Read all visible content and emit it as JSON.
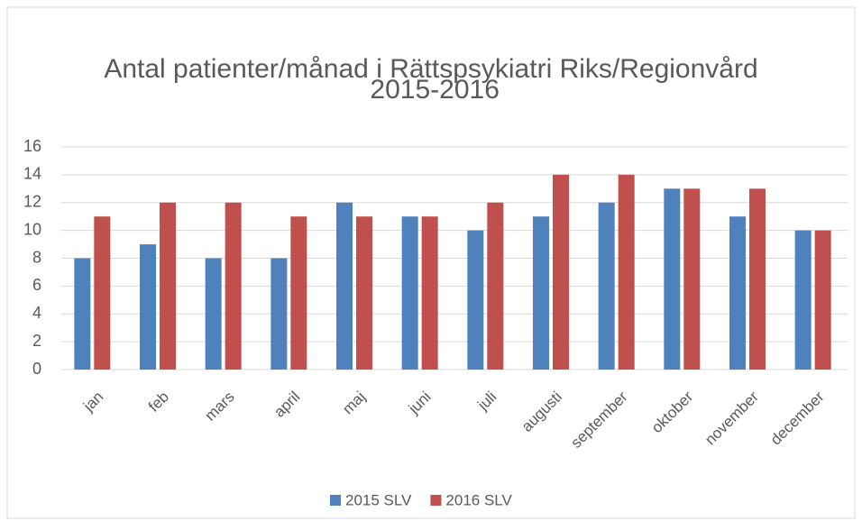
{
  "chart_data": {
    "type": "bar",
    "title": "Antal patienter/månad i Rättspsykiatri Riks/Regionvård 2015-2016",
    "categories": [
      "jan",
      "feb",
      "mars",
      "april",
      "maj",
      "juni",
      "juli",
      "augusti",
      "september",
      "oktober",
      "november",
      "december"
    ],
    "series": [
      {
        "name": "2015 SLV",
        "color": "#4f81bd",
        "values": [
          8,
          9,
          8,
          8,
          12,
          11,
          10,
          11,
          12,
          13,
          11,
          10
        ]
      },
      {
        "name": "2016 SLV",
        "color": "#c0504d",
        "values": [
          11,
          12,
          12,
          11,
          11,
          11,
          12,
          14,
          14,
          13,
          13,
          10
        ]
      }
    ],
    "ylim": [
      0,
      16
    ],
    "yticks": [
      0,
      2,
      4,
      6,
      8,
      10,
      12,
      14,
      16
    ],
    "grid": true,
    "legend": "bottom"
  }
}
